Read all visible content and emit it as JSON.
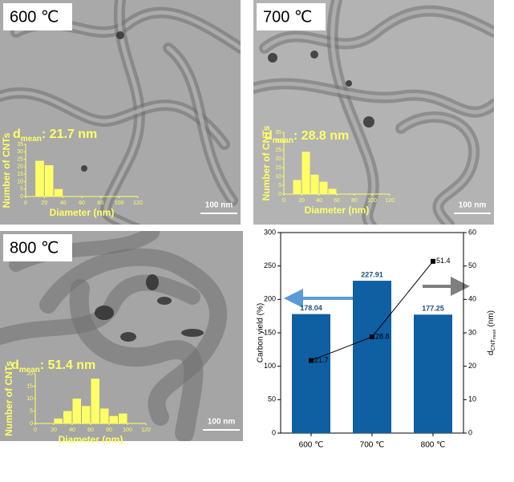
{
  "chart_data": [
    {
      "type": "histogram",
      "title": "600 ℃",
      "annotation": {
        "symbol": "d",
        "subscript": "mean",
        "text": ": 21.7 nm"
      },
      "scale_bar": "100 nm",
      "xlabel": "Diameter (nm)",
      "ylabel": "Number of CNTs",
      "bins": [
        10,
        20,
        30,
        40
      ],
      "values": [
        24,
        21,
        5
      ],
      "color": "#ffff66",
      "xlim": [
        0,
        120
      ],
      "xticks": [
        0,
        20,
        40,
        60,
        80,
        100,
        120
      ],
      "ylim": [
        0,
        35
      ],
      "yticks": [
        0,
        5,
        10,
        15,
        20,
        25,
        30,
        35
      ]
    },
    {
      "type": "histogram",
      "title": "700 ℃",
      "annotation": {
        "symbol": "d",
        "subscript": "mean",
        "text": ": 28.8 nm"
      },
      "scale_bar": "100 nm",
      "xlabel": "Diameter (nm)",
      "ylabel": "Number of CNTs",
      "bins": [
        10,
        20,
        30,
        40,
        50,
        60
      ],
      "values": [
        8,
        24,
        11,
        7,
        3
      ],
      "color": "#ffff66",
      "xlim": [
        0,
        120
      ],
      "xticks": [
        0,
        20,
        40,
        60,
        80,
        100,
        120
      ],
      "ylim": [
        0,
        35
      ],
      "yticks": [
        0,
        5,
        10,
        15,
        20,
        25,
        30,
        35
      ]
    },
    {
      "type": "histogram",
      "title": "800 ℃",
      "annotation": {
        "symbol": "d",
        "subscript": "mean",
        "text": ": 51.4 nm"
      },
      "scale_bar": "100 nm",
      "xlabel": "Diameter (nm)",
      "ylabel": "Number of CNTs",
      "bins": [
        20,
        30,
        40,
        50,
        60,
        70,
        80,
        90,
        100
      ],
      "values": [
        2,
        5,
        10,
        7,
        18,
        6,
        3,
        4
      ],
      "color": "#ffff66",
      "xlim": [
        0,
        120
      ],
      "xticks": [
        0,
        20,
        40,
        60,
        80,
        100,
        120
      ],
      "ylim": [
        0,
        20
      ],
      "yticks": [
        0,
        5,
        10,
        15,
        20
      ]
    },
    {
      "type": "bar",
      "categories": [
        "600 ℃",
        "700 ℃",
        "800 ℃"
      ],
      "ylabel": "Carbon yield (%)",
      "y2label": {
        "symbol": "d",
        "subscript": "CNT",
        "subsubscript": "mean",
        "text": "(nm)"
      },
      "series": [
        {
          "type": "bar",
          "color": "#0f5fa3",
          "values": [
            178.04,
            227.91,
            177.25
          ]
        },
        {
          "type": "line",
          "axis": "y2",
          "color": "#000000",
          "values": [
            21.7,
            28.8,
            51.4
          ]
        }
      ],
      "ylim": [
        0,
        300
      ],
      "yticks": [
        0,
        50,
        100,
        150,
        200,
        250,
        300
      ],
      "y2lim": [
        0,
        60
      ],
      "y2ticks": [
        0,
        10,
        20,
        30,
        40,
        50,
        60
      ]
    }
  ]
}
